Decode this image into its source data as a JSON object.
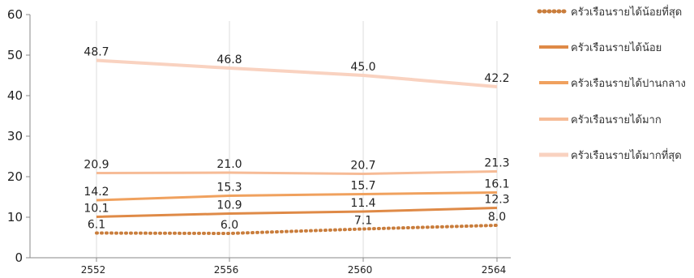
{
  "chart_data": {
    "type": "line",
    "title": "",
    "xlabel": "",
    "ylabel": "",
    "x": [
      "2552",
      "2556",
      "2560",
      "2564"
    ],
    "ylim": [
      0,
      60
    ],
    "yticks": [
      0,
      10,
      20,
      30,
      40,
      50,
      60
    ],
    "grid": "vertical",
    "legend_position": "right",
    "series": [
      {
        "name": "ครัวเรือนรายได้น้อยที่สุด",
        "values": [
          6.1,
          6.0,
          7.1,
          8.0
        ],
        "color": "#c97d3c",
        "style": "dotted"
      },
      {
        "name": "ครัวเรือนรายได้น้อย",
        "values": [
          10.1,
          10.9,
          11.4,
          12.3
        ],
        "color": "#df8a47",
        "style": "solid"
      },
      {
        "name": "ครัวเรือนรายได้ปานกลาง",
        "values": [
          14.2,
          15.3,
          15.7,
          16.1
        ],
        "color": "#f0a15e",
        "style": "solid"
      },
      {
        "name": "ครัวเรือนรายได้มาก",
        "values": [
          20.9,
          21.0,
          20.7,
          21.3
        ],
        "color": "#f6bb96",
        "style": "solid"
      },
      {
        "name": "ครัวเรือนรายได้มากที่สุด",
        "values": [
          48.7,
          46.8,
          45.0,
          42.2
        ],
        "color": "#f9d2c0",
        "style": "solid"
      }
    ]
  }
}
